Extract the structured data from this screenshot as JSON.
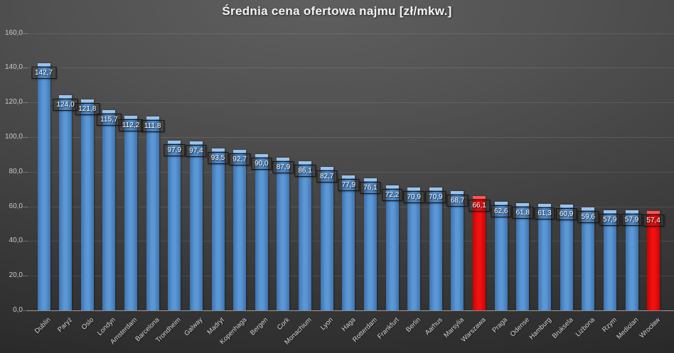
{
  "chart_data": {
    "type": "bar",
    "title": "Średnia cena ofertowa najmu [zł/mkw.]",
    "categories": [
      "Dublin",
      "Paryż",
      "Oslo",
      "Londyn",
      "Amsterdam",
      "Barcelona",
      "Trondheim",
      "Galway",
      "Madryt",
      "Kopenhaga",
      "Bergen",
      "Cork",
      "Monachium",
      "Lyon",
      "Haga",
      "Rotterdam",
      "Frankfurt",
      "Berlin",
      "Aarhus",
      "Marsylia",
      "Warszawa",
      "Praga",
      "Odense",
      "Hamburg",
      "Bruksela",
      "Lizbona",
      "Rzym",
      "Mediolan",
      "Wrocław"
    ],
    "values": [
      142.7,
      124.0,
      121.8,
      115.7,
      112.2,
      111.8,
      97.9,
      97.4,
      93.5,
      92.7,
      90.0,
      87.9,
      86.1,
      82.7,
      77.9,
      76.1,
      72.2,
      70.9,
      70.9,
      68.7,
      66.1,
      62.6,
      61.8,
      61.3,
      60.9,
      59.6,
      57.9,
      57.9,
      57.4
    ],
    "value_labels": [
      "142,7",
      "124,0",
      "121,8",
      "115,7",
      "112,2",
      "111,8",
      "97,9",
      "97,4",
      "93,5",
      "92,7",
      "90,0",
      "87,9",
      "86,1",
      "82,7",
      "77,9",
      "76,1",
      "72,2",
      "70,9",
      "70,9",
      "68,7",
      "66,1",
      "62,6",
      "61,8",
      "61,3",
      "60,9",
      "59,6",
      "57,9",
      "57,9",
      "57,4"
    ],
    "highlight_indices": [
      20,
      28
    ],
    "xlabel": "",
    "ylabel": "",
    "ylim": [
      0,
      160
    ],
    "ytick_step": 20,
    "ytick_labels": [
      "0,0",
      "20,0",
      "40,0",
      "60,0",
      "80,0",
      "100,0",
      "120,0",
      "140,0",
      "160,0"
    ],
    "grid": true,
    "legend": "none",
    "colors": {
      "bar": "#4b88c9",
      "bar_cap": "#9dc3e8",
      "highlight": "#ee0f0f",
      "highlight_cap": "#fb5555",
      "background_center": "#5f5f5f",
      "background_edge": "#262626",
      "value_label_text": "#ffffff",
      "axis_text": "#c9c9c9"
    }
  }
}
